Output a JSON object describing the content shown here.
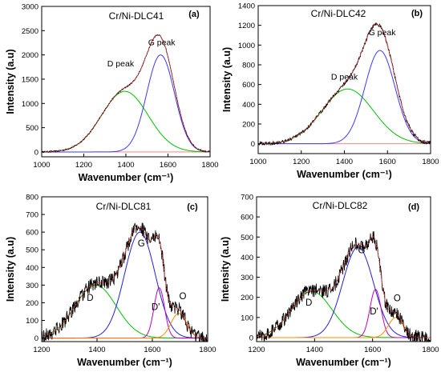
{
  "chart_data": [
    {
      "type": "line",
      "panel": "(a)",
      "title": "Cr/Ni-DLC41",
      "xlabel": "Wavenumber (cm⁻¹)",
      "ylabel": "Intensity (a.u)",
      "xlim": [
        1000,
        1800
      ],
      "ylim": [
        -100,
        3000
      ],
      "xticks": [
        1000,
        1200,
        1400,
        1600,
        1800
      ],
      "yticks": [
        0,
        500,
        1000,
        1500,
        2000,
        2500,
        3000
      ],
      "baseline": 0,
      "noise": 15,
      "peaks": [
        {
          "name": "D peak",
          "center": 1395,
          "height": 1250,
          "fwhm": 260,
          "color": "#00c000"
        },
        {
          "name": "G peak",
          "center": 1565,
          "height": 2000,
          "fwhm": 155,
          "color": "#3a3aff"
        }
      ],
      "annotations": [
        {
          "text": "G peak",
          "x": 1570,
          "y": 2200
        },
        {
          "text": "D peak",
          "x": 1375,
          "y": 1760
        }
      ]
    },
    {
      "type": "line",
      "panel": "(b)",
      "title": "Cr/Ni-DLC42",
      "xlabel": "Wavenumber (cm⁻¹)",
      "ylabel": "Intensity (a.u)",
      "xlim": [
        1000,
        1800
      ],
      "ylim": [
        -100,
        1400
      ],
      "xticks": [
        1000,
        1200,
        1400,
        1600,
        1800
      ],
      "yticks": [
        0,
        200,
        400,
        600,
        800,
        1000,
        1200,
        1400
      ],
      "baseline": 0,
      "noise": 18,
      "peaks": [
        {
          "name": "D peak",
          "center": 1415,
          "height": 555,
          "fwhm": 280,
          "color": "#00c000"
        },
        {
          "name": "G peak",
          "center": 1565,
          "height": 945,
          "fwhm": 165,
          "color": "#3a3aff"
        }
      ],
      "annotations": [
        {
          "text": "G peak",
          "x": 1575,
          "y": 1100
        },
        {
          "text": "D peak",
          "x": 1400,
          "y": 650
        }
      ]
    },
    {
      "type": "line",
      "panel": "(c)",
      "title": "Cr/Ni-DLC81",
      "xlabel": "Wavenumber (cm⁻¹)",
      "ylabel": "Intensity (a.u)",
      "xlim": [
        1200,
        1800
      ],
      "ylim": [
        -20,
        800
      ],
      "xticks": [
        1200,
        1400,
        1600,
        1800
      ],
      "yticks": [
        0,
        100,
        200,
        300,
        400,
        500,
        600,
        700,
        800
      ],
      "baseline": 0,
      "noise": 40,
      "peaks": [
        {
          "name": "D",
          "center": 1395,
          "height": 300,
          "fwhm": 175,
          "color": "#00c000"
        },
        {
          "name": "G",
          "center": 1555,
          "height": 600,
          "fwhm": 130,
          "color": "#2020e0"
        },
        {
          "name": "D'",
          "center": 1625,
          "height": 285,
          "fwhm": 45,
          "color": "#c000c0"
        },
        {
          "name": "O",
          "center": 1695,
          "height": 140,
          "fwhm": 65,
          "color": "#ff8c00"
        }
      ],
      "annotations": [
        {
          "text": "G",
          "x": 1560,
          "y": 520
        },
        {
          "text": "D",
          "x": 1375,
          "y": 210
        },
        {
          "text": "D'",
          "x": 1612,
          "y": 160
        },
        {
          "text": "O",
          "x": 1710,
          "y": 220
        }
      ]
    },
    {
      "type": "line",
      "panel": "(d)",
      "title": "Cr/Ni-DLC82",
      "xlabel": "Wavenumber (cm⁻¹)",
      "ylabel": "Intensity (a.u)",
      "xlim": [
        1200,
        1800
      ],
      "ylim": [
        -20,
        700
      ],
      "xticks": [
        1200,
        1400,
        1600,
        1800
      ],
      "yticks": [
        0,
        100,
        200,
        300,
        400,
        500,
        600,
        700
      ],
      "baseline": 0,
      "noise": 35,
      "peaks": [
        {
          "name": "D",
          "center": 1390,
          "height": 230,
          "fwhm": 165,
          "color": "#00c000"
        },
        {
          "name": "G",
          "center": 1550,
          "height": 450,
          "fwhm": 125,
          "color": "#2020e0"
        },
        {
          "name": "D'",
          "center": 1610,
          "height": 240,
          "fwhm": 45,
          "color": "#c000c0"
        },
        {
          "name": "O",
          "center": 1680,
          "height": 100,
          "fwhm": 60,
          "color": "#ff8c00"
        }
      ],
      "annotations": [
        {
          "text": "G",
          "x": 1562,
          "y": 420
        },
        {
          "text": "D",
          "x": 1380,
          "y": 160
        },
        {
          "text": "D'",
          "x": 1605,
          "y": 115
        },
        {
          "text": "O",
          "x": 1685,
          "y": 180
        }
      ]
    }
  ]
}
